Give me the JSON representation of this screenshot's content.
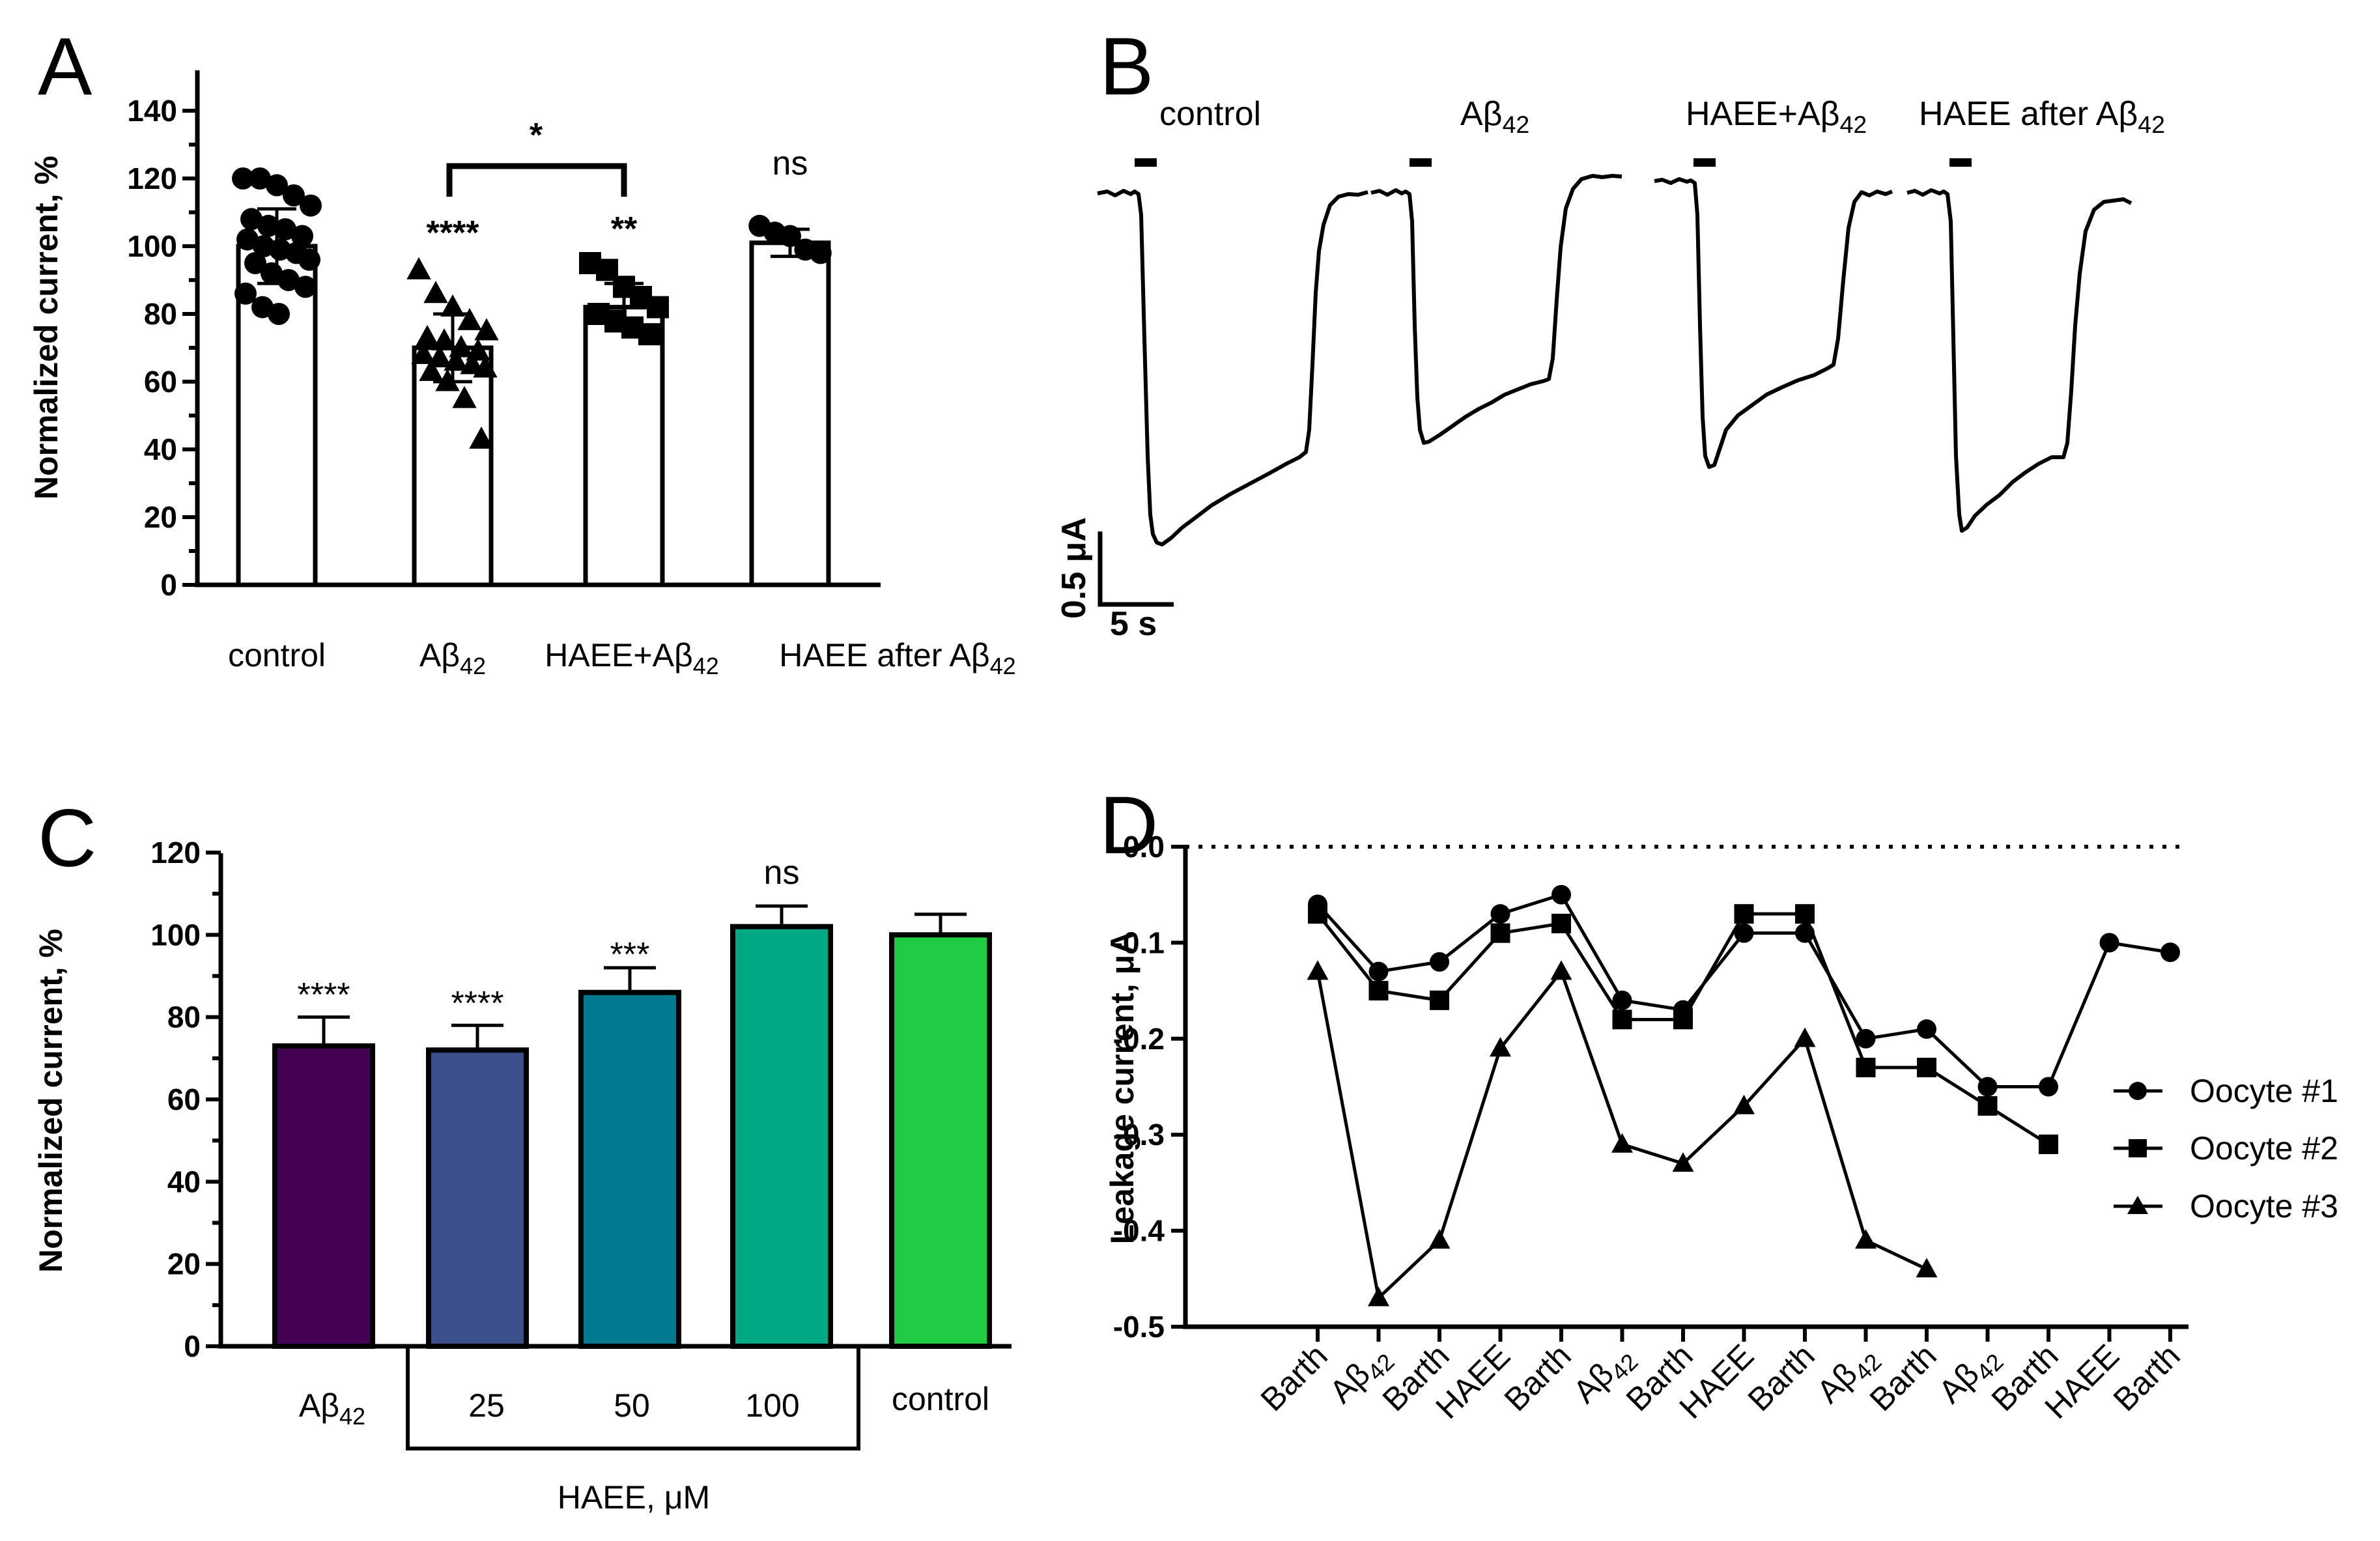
{
  "colors": {
    "black": "#000000",
    "c_abeta": "#440154",
    "c_25": "#3b4f8a",
    "c_50": "#03798f",
    "c_100": "#00a884",
    "c_control": "#21cc44"
  },
  "chart_data": [
    {
      "panel": "A",
      "type": "bar",
      "ylabel": "Normalized current,  %",
      "ylim": [
        0,
        150
      ],
      "yticks": [
        "0",
        "20",
        "40",
        "60",
        "80",
        "100",
        "120",
        "140"
      ],
      "categories": [
        "control",
        "Aβ42",
        "HAEE+Aβ42",
        "HAEE after Aβ42"
      ],
      "values": [
        100,
        70,
        82,
        101
      ],
      "errors": [
        11,
        10,
        7,
        4
      ],
      "markers": [
        "circle",
        "triangle",
        "square",
        "circle"
      ],
      "points": [
        [
          120,
          120,
          118,
          115,
          112,
          108,
          106,
          105,
          103,
          102,
          100,
          99,
          98,
          96,
          95,
          92,
          90,
          88,
          86,
          82,
          80
        ],
        [
          93,
          86,
          82,
          78,
          75,
          73,
          72,
          70,
          69,
          68,
          67,
          66,
          65,
          64,
          63,
          60,
          55,
          43
        ],
        [
          95,
          93,
          88,
          85,
          82,
          80,
          78,
          76,
          74
        ],
        [
          106,
          104,
          103,
          99,
          98
        ]
      ],
      "significance": [
        "",
        "****",
        "**",
        "ns"
      ],
      "bracket": {
        "from": "Aβ42",
        "to": "HAEE+Aβ42",
        "label": "*"
      }
    },
    {
      "panel": "B",
      "type": "line",
      "traces": [
        {
          "label": "control"
        },
        {
          "label": "Aβ42"
        },
        {
          "label": "HAEE+Aβ42"
        },
        {
          "label": "HAEE after Aβ42"
        }
      ],
      "scale_y": "0.5 μA",
      "scale_x": "5 s"
    },
    {
      "panel": "C",
      "type": "bar",
      "ylabel": "Normalized current,  %",
      "ylim": [
        0,
        120
      ],
      "yticks": [
        "0",
        "20",
        "40",
        "60",
        "80",
        "100",
        "120"
      ],
      "categories": [
        "Aβ42",
        "25",
        "50",
        "100",
        "control"
      ],
      "values": [
        73,
        72,
        86,
        102,
        100
      ],
      "errors": [
        7,
        6,
        6,
        5,
        5
      ],
      "significance": [
        "****",
        "****",
        "***",
        "ns",
        ""
      ],
      "group_label": "HAEE, μM"
    },
    {
      "panel": "D",
      "type": "line",
      "ylabel": "Leakage current, μA",
      "ylim": [
        -0.5,
        0.0
      ],
      "yticks": [
        "-0.5",
        "-0.4",
        "-0.3",
        "-0.2",
        "-0.1",
        "0.0"
      ],
      "categories": [
        "Barth",
        "Aβ42",
        "Barth",
        "HAEE",
        "Barth",
        "Aβ42",
        "Barth",
        "HAEE",
        "Barth",
        "Aβ42",
        "Barth",
        "Aβ42",
        "Barth",
        "HAEE",
        "Barth"
      ],
      "series": [
        {
          "name": "Oocyte #1",
          "marker": "circle",
          "values": [
            -0.06,
            -0.13,
            -0.12,
            -0.07,
            -0.05,
            -0.16,
            -0.17,
            -0.09,
            -0.09,
            -0.2,
            -0.19,
            -0.25,
            -0.25,
            -0.1,
            -0.11
          ]
        },
        {
          "name": "Oocyte #2",
          "marker": "square",
          "values": [
            -0.07,
            -0.15,
            -0.16,
            -0.09,
            -0.08,
            -0.18,
            -0.18,
            -0.07,
            -0.07,
            -0.23,
            -0.23,
            -0.27,
            -0.31,
            null,
            null
          ]
        },
        {
          "name": "Oocyte #3",
          "marker": "triangle",
          "values": [
            -0.13,
            -0.47,
            -0.41,
            -0.21,
            -0.13,
            -0.31,
            -0.33,
            -0.27,
            -0.2,
            -0.41,
            -0.44,
            null,
            null,
            null,
            null
          ]
        }
      ]
    }
  ]
}
